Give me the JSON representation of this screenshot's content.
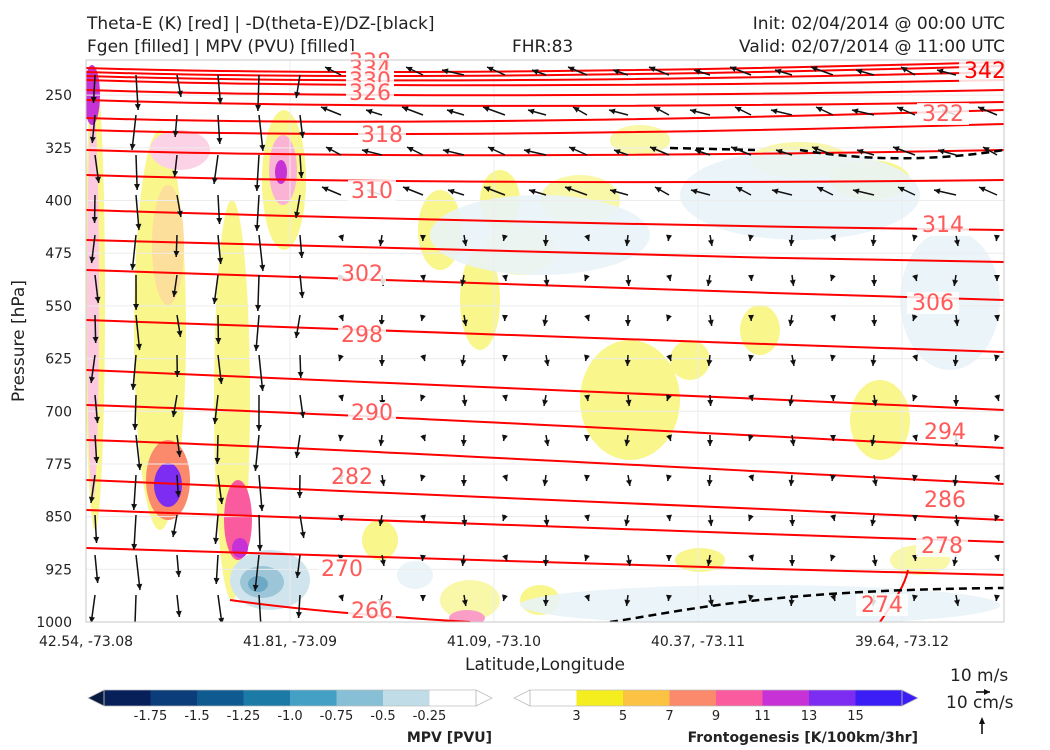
{
  "header": {
    "line1_left": "Theta-E (K) [red] | -D(theta-E)/DZ-[black]",
    "line2_left": "Fgen [filled] | MPV (PVU) [filled]",
    "fhr": "FHR:83",
    "init": "Init: 02/04/2014 @ 00:00 UTC",
    "valid": "Valid: 02/07/2014 @ 11:00 UTC"
  },
  "chart_data": {
    "type": "cross-section",
    "xlabel": "Latitude,Longitude",
    "ylabel": "Pressure [hPa]",
    "x_ticks": [
      "42.54, -73.08",
      "41.81, -73.09",
      "41.09, -73.10",
      "40.37, -73.11",
      "39.64, -73.12"
    ],
    "y_ticks": [
      250,
      325,
      400,
      475,
      550,
      625,
      700,
      775,
      850,
      925,
      1000
    ],
    "ylim": [
      1000,
      200
    ],
    "theta_e_contours": {
      "color": "#ff0000",
      "levels": [
        266,
        270,
        274,
        278,
        282,
        286,
        290,
        294,
        298,
        302,
        306,
        310,
        314,
        318,
        322,
        326,
        330,
        334,
        338,
        342
      ],
      "labels_left": [
        "338",
        "334",
        "330",
        "326",
        "318",
        "310",
        "302",
        "298",
        "290",
        "282",
        "270",
        "266"
      ],
      "labels_right": [
        "342",
        "322",
        "314",
        "306",
        "294",
        "286",
        "278",
        "274"
      ]
    },
    "wind_legend": {
      "horizontal": "10 m/s",
      "vertical": "10 cm/s"
    },
    "mpv_colorbar": {
      "label": "MPV [PVU]",
      "ticks": [
        "-1.75",
        "-1.5",
        "-1.25",
        "-1.0",
        "-0.75",
        "-0.5",
        "-0.25"
      ],
      "colors": [
        "#08205a",
        "#0b3d7a",
        "#0f5a90",
        "#1b7aa6",
        "#44a0c4",
        "#86bfd6",
        "#c0dde7",
        "#ffffff"
      ]
    },
    "fgen_colorbar": {
      "label": "Frontogenesis [K/100km/3hr]",
      "ticks": [
        "3",
        "5",
        "7",
        "9",
        "11",
        "13",
        "15"
      ],
      "colors": [
        "#ffffff",
        "#f5ee1e",
        "#fcc243",
        "#fb8a6c",
        "#fa5a9e",
        "#c732d6",
        "#7d2cf2",
        "#3a1ef5"
      ]
    }
  }
}
